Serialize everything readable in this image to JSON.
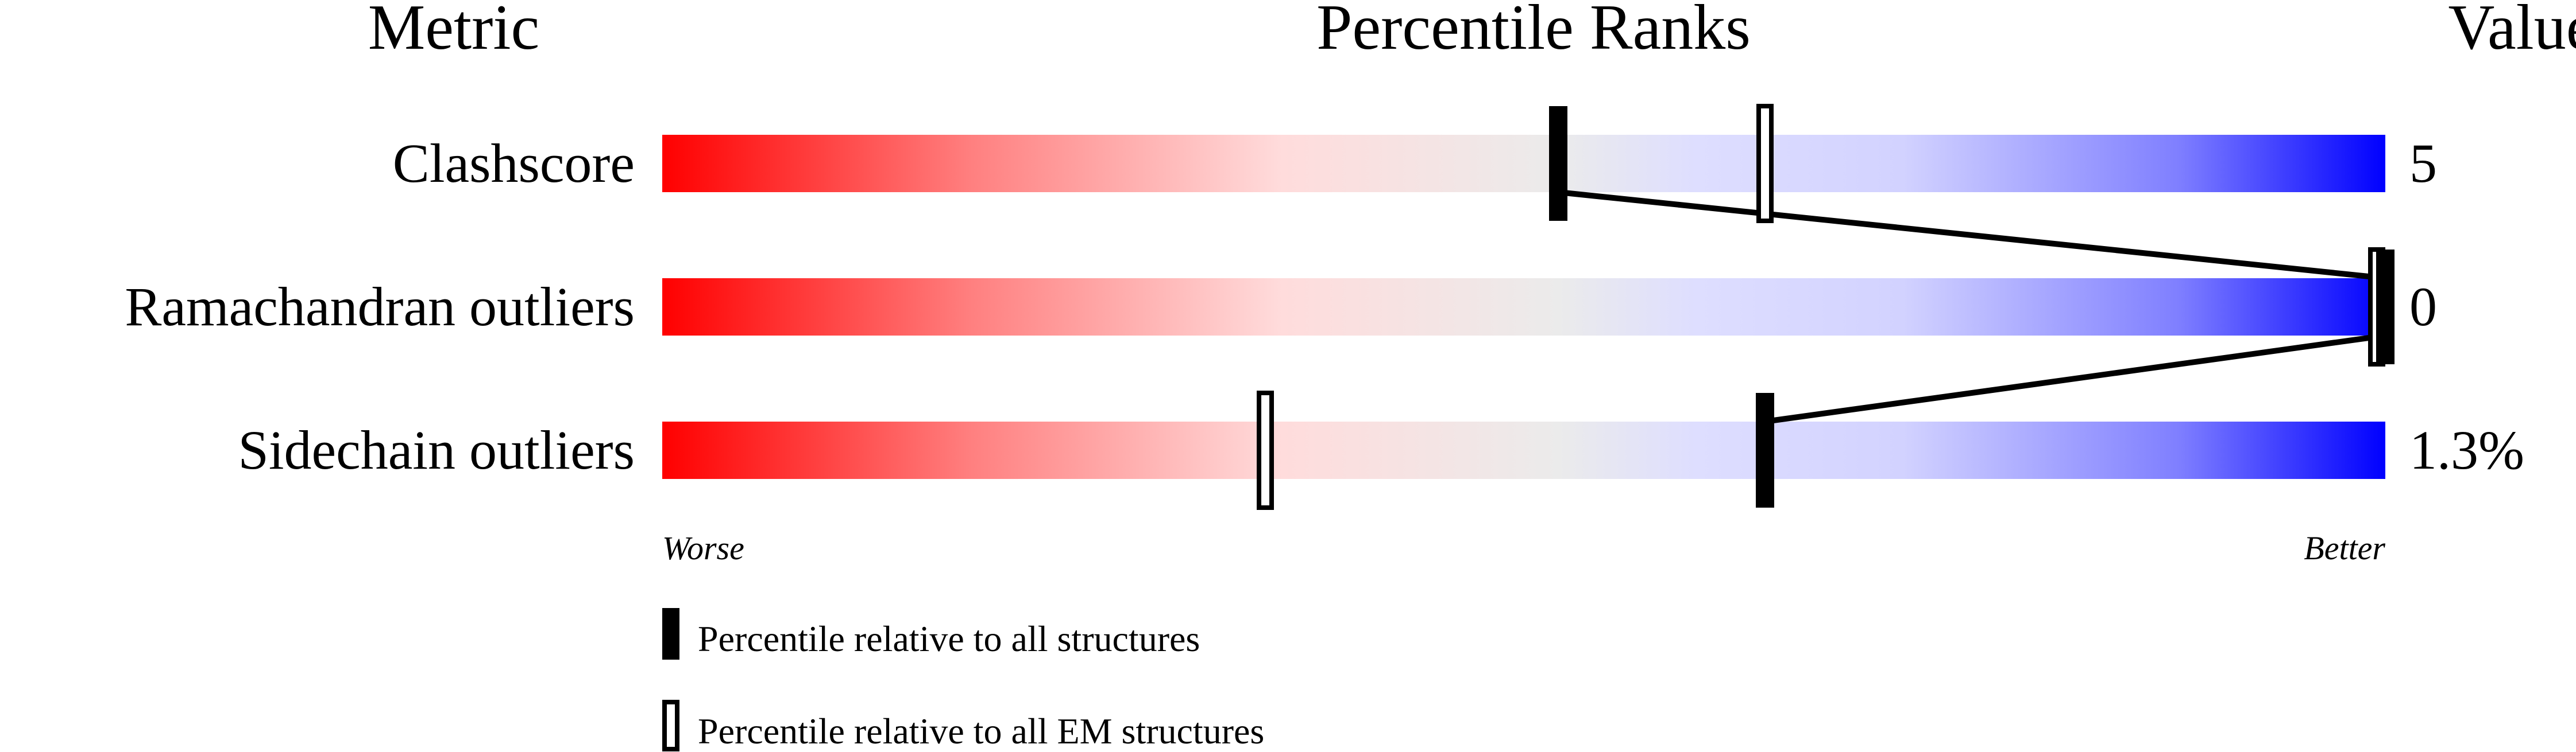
{
  "chart_data": {
    "type": "table",
    "headers": {
      "metric": "Metric",
      "ranks": "Percentile Ranks",
      "value": "Value"
    },
    "metrics": [
      {
        "name": "Clashscore",
        "value": "5",
        "percentile_all": 52,
        "percentile_em": 64
      },
      {
        "name": "Ramachandran outliers",
        "value": "0",
        "percentile_all": 100,
        "percentile_em": 100
      },
      {
        "name": "Sidechain outliers",
        "value": "1.3%",
        "percentile_all": 64,
        "percentile_em": 35
      }
    ],
    "axis": {
      "worse": "Worse",
      "better": "Better",
      "range": [
        0,
        100
      ]
    },
    "legend": {
      "all": "Percentile relative to all structures",
      "em": "Percentile relative to all EM structures"
    },
    "colors": {
      "worse": "#ff0000",
      "middle": "#eeeeee",
      "better": "#0000ff",
      "marker": "#000000"
    }
  }
}
